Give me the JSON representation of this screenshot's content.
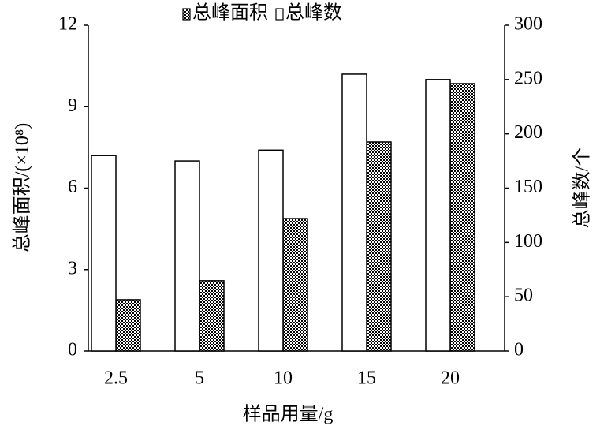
{
  "chart_data": {
    "type": "bar",
    "x_label": "样品用量/g",
    "y_label": "总峰面积/(×10⁸)",
    "y2_label": "总峰数/个",
    "categories": [
      "2.5",
      "5",
      "10",
      "15",
      "20"
    ],
    "series": [
      {
        "name": "总峰面积",
        "color": "#000000",
        "pattern": "checker",
        "values": [
          1.89,
          2.59,
          4.88,
          7.7,
          9.85
        ]
      },
      {
        "name": "总峰数",
        "color": "#ffffff",
        "axis": "y2",
        "values": [
          180,
          175,
          185,
          255,
          250
        ]
      }
    ],
    "ylim": [
      0,
      12
    ],
    "yticks": [
      0,
      3,
      6,
      9,
      12
    ],
    "y2lim": [
      0,
      300
    ],
    "y2ticks": [
      0,
      50,
      100,
      150,
      200,
      250,
      300
    ],
    "grid": false,
    "legend": "top"
  }
}
